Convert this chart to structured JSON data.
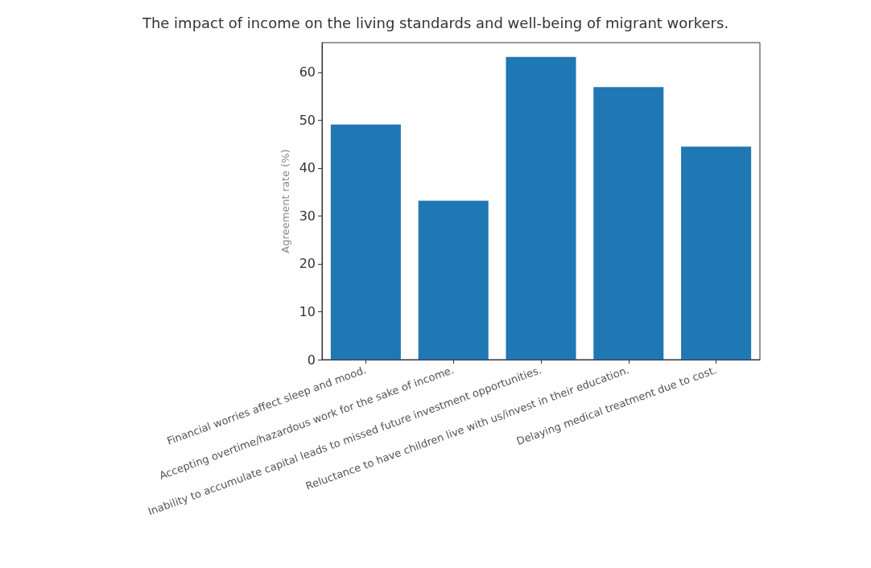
{
  "chart_data": {
    "type": "bar",
    "title": "The impact of income on the living standards and well-being of migrant workers.",
    "ylabel": "Agreement rate (%)",
    "categories": [
      "Financial worries affect sleep and mood.",
      "Accepting overtime/hazardous work for the sake of income.",
      "Inability to accumulate capital leads to missed future investment opportunities.",
      "Reluctance to have children live with us/invest in their education.",
      "Delaying medical treatment due to cost."
    ],
    "values": [
      49.1,
      33.2,
      63.2,
      56.9,
      44.5
    ],
    "color": "#1f77b4",
    "ylim": [
      0,
      66.2
    ],
    "yticks": [
      0,
      10,
      20,
      30,
      40,
      50,
      60
    ],
    "grid": false
  }
}
